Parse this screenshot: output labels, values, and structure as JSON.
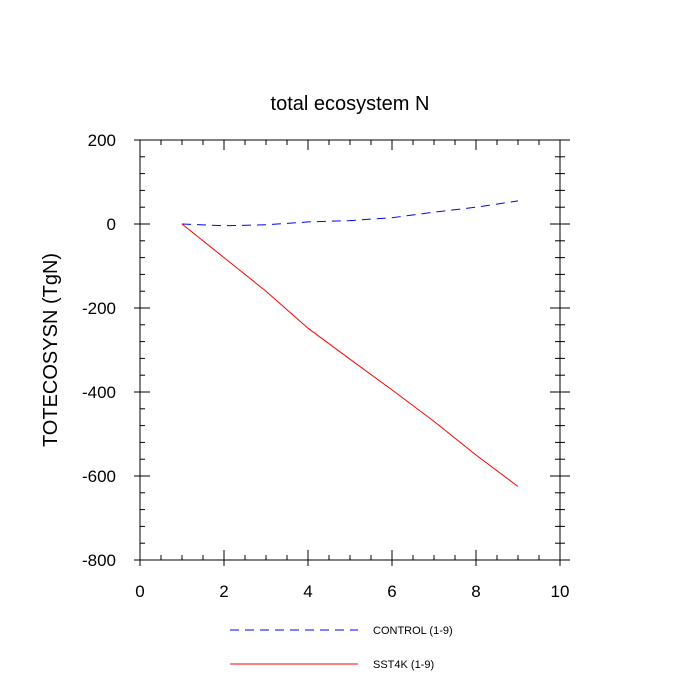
{
  "chart_data": {
    "type": "line",
    "title": "total ecosystem N",
    "xlabel": "",
    "ylabel": "TOTECOSYSN  (TgN)",
    "xlim": [
      0,
      10
    ],
    "ylim": [
      -800,
      200
    ],
    "xticks": [
      0,
      2,
      4,
      6,
      8,
      10
    ],
    "yticks": [
      200,
      0,
      -200,
      -400,
      -600,
      -800
    ],
    "x": [
      1,
      2,
      3,
      4,
      5,
      6,
      7,
      8,
      9
    ],
    "series": [
      {
        "name": "CONTROL (1-9)",
        "color": "#0000ff",
        "style": "dashed",
        "values": [
          0,
          -4,
          -2,
          5,
          8,
          15,
          28,
          40,
          55
        ]
      },
      {
        "name": "SST4K (1-9)",
        "color": "#ff0000",
        "style": "solid",
        "values": [
          0,
          -80,
          -160,
          -248,
          -322,
          -395,
          -470,
          -550,
          -625
        ]
      }
    ],
    "legend_position": "bottom-center"
  }
}
